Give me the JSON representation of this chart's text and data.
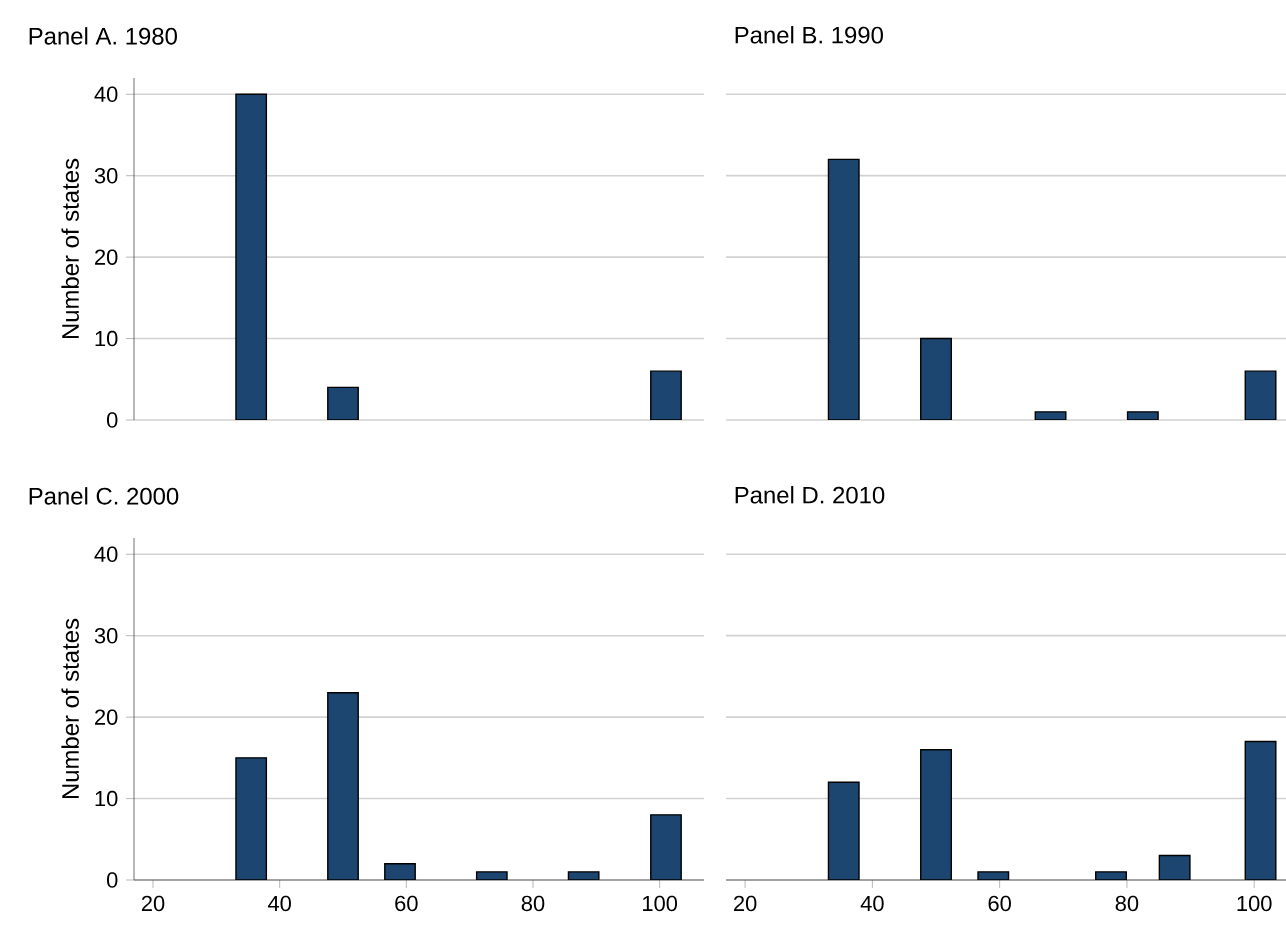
{
  "chart_data": [
    {
      "type": "bar",
      "title": "Panel A. 1980",
      "ylabel": "Number of states",
      "x": [
        35.5,
        50,
        101
      ],
      "values": [
        40,
        4,
        6
      ],
      "color": "#1c4670",
      "xlim": [
        17,
        107
      ],
      "ylim": [
        0,
        42
      ],
      "xticks": [
        20,
        40,
        60,
        80,
        100
      ],
      "yticks": [
        0,
        10,
        20,
        30,
        40
      ],
      "grid": "y",
      "tick_labels": "y"
    },
    {
      "type": "bar",
      "title": "Panel B. 1990",
      "x": [
        35.5,
        50,
        68,
        82.5,
        101
      ],
      "values": [
        32,
        10,
        1,
        1,
        6
      ],
      "color": "#1c4670",
      "xlim": [
        17,
        105
      ],
      "ylim": [
        0,
        40
      ],
      "xticks": [
        20,
        40,
        60,
        80,
        100
      ],
      "yticks": [
        0,
        10,
        20,
        30,
        40
      ],
      "grid": "y",
      "tick_labels": false
    },
    {
      "type": "bar",
      "title": "Panel C. 2000",
      "ylabel": "Number of states",
      "x": [
        35.5,
        50,
        59,
        73.5,
        88,
        101
      ],
      "values": [
        15,
        23,
        2,
        1,
        1,
        8
      ],
      "color": "#1c4670",
      "xlim": [
        17,
        107
      ],
      "ylim": [
        0,
        42
      ],
      "xticks": [
        20,
        40,
        60,
        80,
        100
      ],
      "yticks": [
        0,
        10,
        20,
        30,
        40
      ],
      "grid": "y"
    },
    {
      "type": "bar",
      "title": "Panel D. 2010",
      "x": [
        35.5,
        50,
        59,
        77.5,
        87.5,
        101
      ],
      "values": [
        12,
        16,
        1,
        1,
        3,
        17
      ],
      "color": "#1c4670",
      "xlim": [
        17,
        105
      ],
      "ylim": [
        0,
        40
      ],
      "xticks": [
        20,
        40,
        60,
        80,
        100
      ],
      "yticks": [
        0,
        10,
        20,
        30,
        40
      ],
      "grid": "y",
      "tick_labels": "x"
    }
  ]
}
